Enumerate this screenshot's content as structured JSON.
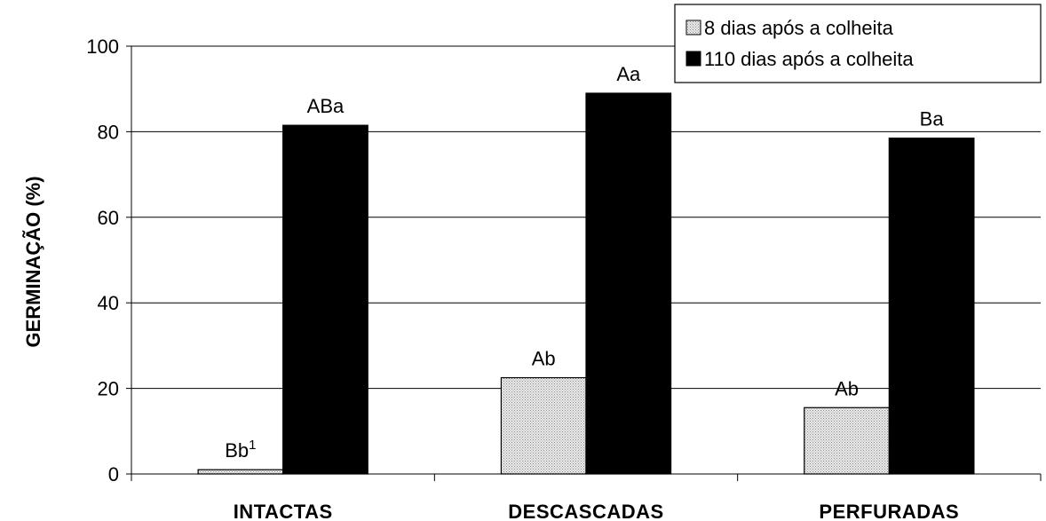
{
  "chart_data": {
    "type": "bar",
    "categories": [
      "INTACTAS",
      "DESCASCADAS",
      "PERFURADAS"
    ],
    "ylabel": "GERMINAÇÃO (%)",
    "ylim": [
      0,
      100
    ],
    "yticks": [
      0,
      20,
      40,
      60,
      80,
      100
    ],
    "grid": true,
    "legend_position": "top-right",
    "series": [
      {
        "name": "8 dias após a colheita",
        "values": [
          1,
          22.5,
          15.5
        ],
        "labels": [
          "Bb",
          "Ab",
          "Ab"
        ],
        "label_sup": [
          "1",
          "",
          ""
        ],
        "fill": "#d6d6d6"
      },
      {
        "name": "110 dias após a colheita",
        "values": [
          81.5,
          89,
          78.5
        ],
        "labels": [
          "ABa",
          "Aa",
          "Ba"
        ],
        "label_sup": [
          "",
          "",
          ""
        ],
        "fill": "#000000"
      }
    ]
  }
}
